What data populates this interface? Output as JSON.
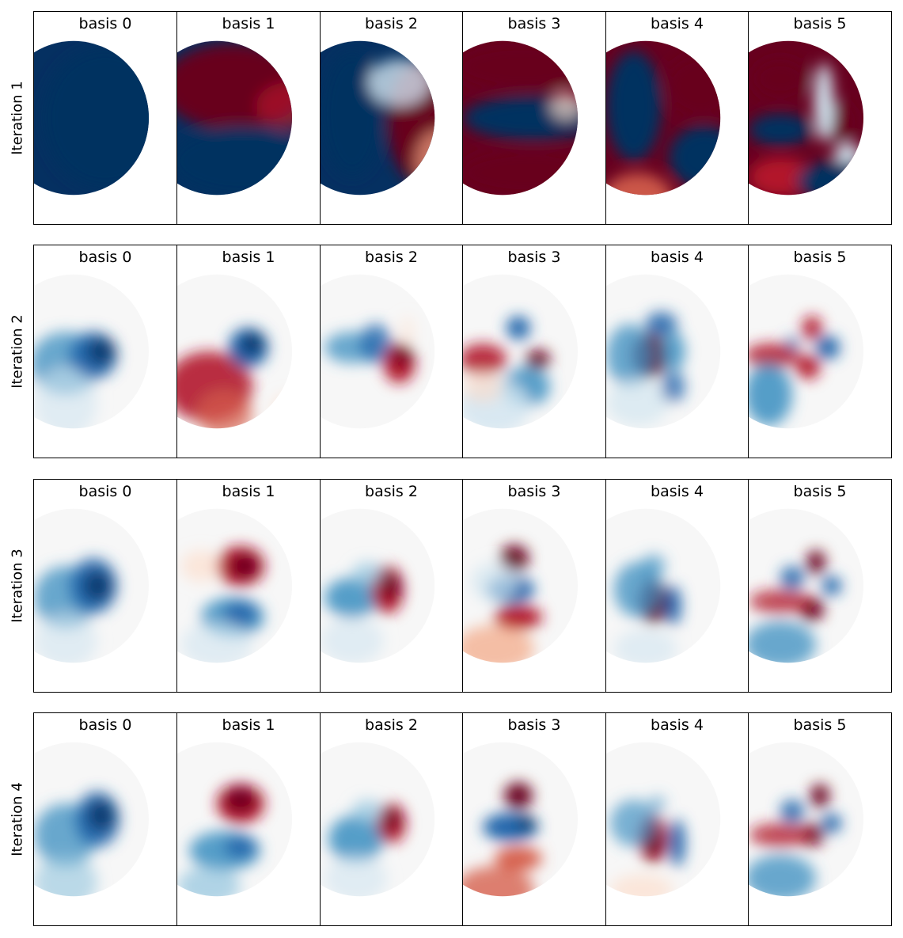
{
  "chart_data": {
    "type": "heatmap",
    "colormap": "RdBu (red = positive, blue = negative)",
    "colors": {
      "deep_red": "#67001f",
      "red": "#d6604d",
      "pale_red": "#fddbc7",
      "neutral": "#f7f7f7",
      "pale_blue": "#d1e5f0",
      "blue": "#4393c3",
      "deep_blue": "#053061"
    },
    "column_titles": [
      "basis 0",
      "basis 1",
      "basis 2",
      "basis 3",
      "basis 4",
      "basis 5"
    ],
    "row_labels": [
      "Iteration 1",
      "Iteration 2",
      "Iteration 3",
      "Iteration 4"
    ],
    "grid": "4 rows x 6 columns of heatmap panels, each showing a circular domain"
  }
}
